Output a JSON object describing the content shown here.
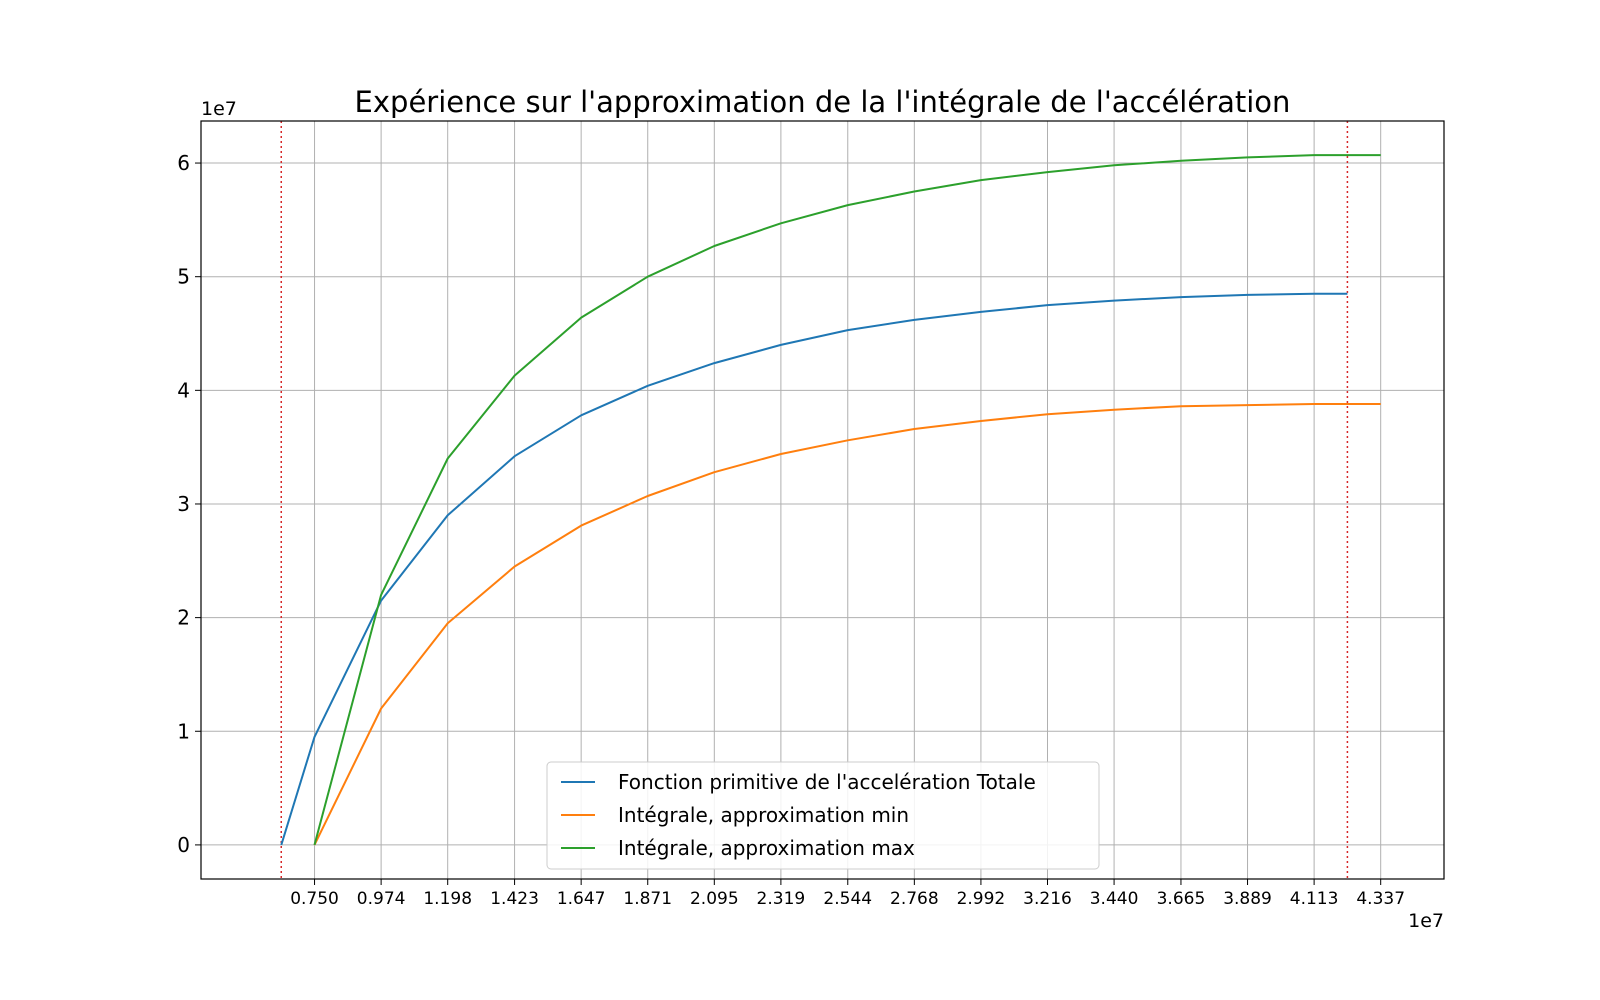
{
  "chart_data": {
    "type": "line",
    "title": "Expérience sur l'approximation de la l'intégrale de l'accélération",
    "xlabel": "",
    "ylabel": "",
    "x_offset_label": "1e7",
    "y_offset_label": "1e7",
    "x_scale_factor": 10000000,
    "y_scale_factor": 10000000,
    "xlim": [
      0.368,
      4.55
    ],
    "ylim": [
      -0.3,
      6.37
    ],
    "x_ticks": [
      0.75,
      0.974,
      1.198,
      1.423,
      1.647,
      1.871,
      2.095,
      2.319,
      2.544,
      2.768,
      2.992,
      3.216,
      3.44,
      3.665,
      3.889,
      4.113,
      4.337
    ],
    "x_tick_labels": [
      "0.750",
      "0.974",
      "1.198",
      "1.423",
      "1.647",
      "1.871",
      "2.095",
      "2.319",
      "2.544",
      "2.768",
      "2.992",
      "3.216",
      "3.440",
      "3.665",
      "3.889",
      "4.113",
      "4.337"
    ],
    "y_ticks": [
      0,
      1,
      2,
      3,
      4,
      5,
      6
    ],
    "y_tick_labels": [
      "0",
      "1",
      "2",
      "3",
      "4",
      "5",
      "6"
    ],
    "grid": true,
    "legend_position": "bottom-center",
    "vlines": [
      {
        "x": 0.638,
        "color": "#d62728",
        "style": "dotted"
      },
      {
        "x": 4.225,
        "color": "#d62728",
        "style": "dotted"
      }
    ],
    "series": [
      {
        "name": "Fonction primitive de l'accelération Totale",
        "color": "#1f77b4",
        "x": [
          0.638,
          0.75,
          0.974,
          1.198,
          1.423,
          1.647,
          1.871,
          2.095,
          2.319,
          2.544,
          2.768,
          2.992,
          3.216,
          3.44,
          3.665,
          3.889,
          4.113,
          4.225
        ],
        "y": [
          0.0,
          0.95,
          2.15,
          2.9,
          3.42,
          3.78,
          4.04,
          4.24,
          4.4,
          4.53,
          4.62,
          4.69,
          4.75,
          4.79,
          4.82,
          4.84,
          4.85,
          4.85
        ]
      },
      {
        "name": "Intégrale, approximation min",
        "color": "#ff7f0e",
        "x": [
          0.75,
          0.974,
          1.198,
          1.423,
          1.647,
          1.871,
          2.095,
          2.319,
          2.544,
          2.768,
          2.992,
          3.216,
          3.44,
          3.665,
          3.889,
          4.113,
          4.337
        ],
        "y": [
          0.0,
          1.2,
          1.95,
          2.45,
          2.81,
          3.07,
          3.28,
          3.44,
          3.56,
          3.66,
          3.73,
          3.79,
          3.83,
          3.86,
          3.87,
          3.88,
          3.88
        ]
      },
      {
        "name": "Intégrale, approximation max",
        "color": "#2ca02c",
        "x": [
          0.75,
          0.974,
          1.198,
          1.423,
          1.647,
          1.871,
          2.095,
          2.319,
          2.544,
          2.768,
          2.992,
          3.216,
          3.44,
          3.665,
          3.889,
          4.113,
          4.337
        ],
        "y": [
          0.0,
          2.2,
          3.4,
          4.13,
          4.64,
          5.0,
          5.27,
          5.47,
          5.63,
          5.75,
          5.85,
          5.92,
          5.98,
          6.02,
          6.05,
          6.07,
          6.07
        ]
      }
    ]
  }
}
